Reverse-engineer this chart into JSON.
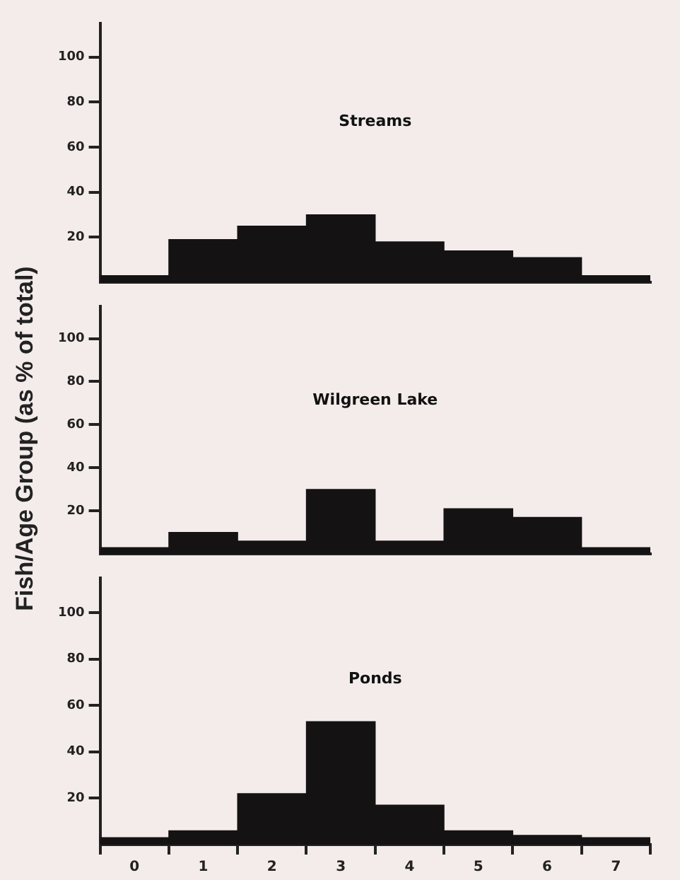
{
  "chart_data": [
    {
      "type": "bar",
      "title": "Streams",
      "categories": [
        "0",
        "1",
        "2",
        "3",
        "4",
        "5",
        "6",
        "7"
      ],
      "values": [
        3,
        19,
        25,
        30,
        18,
        14,
        11,
        3
      ],
      "color": "#141212",
      "ylim": [
        0,
        115
      ],
      "yticks": [
        20,
        40,
        60,
        80,
        100
      ],
      "tick_labels": "y",
      "grid": false,
      "legend": false
    },
    {
      "type": "bar",
      "title": "Wilgreen Lake",
      "ylabel": "Fish/Age Group (as % of total)",
      "categories": [
        "0",
        "1",
        "2",
        "3",
        "4",
        "5",
        "6",
        "7"
      ],
      "values": [
        3,
        10,
        6,
        30,
        6,
        21,
        17,
        3
      ],
      "color": "#141212",
      "ylim": [
        0,
        115
      ],
      "yticks": [
        20,
        40,
        60,
        80,
        100
      ],
      "tick_labels": "y",
      "grid": false,
      "legend": false
    },
    {
      "type": "bar",
      "title": "Ponds",
      "categories": [
        "0",
        "1",
        "2",
        "3",
        "4",
        "5",
        "6",
        "7"
      ],
      "values": [
        3,
        6,
        22,
        53,
        17,
        6,
        4,
        3
      ],
      "color": "#141212",
      "ylim": [
        0,
        115
      ],
      "yticks": [
        20,
        40,
        60,
        80,
        100
      ],
      "grid": false,
      "legend": false
    }
  ]
}
